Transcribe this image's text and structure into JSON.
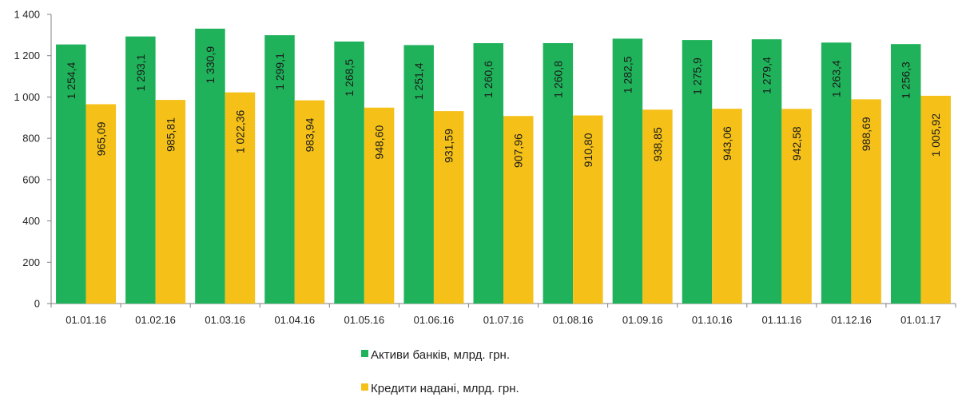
{
  "chart_data": {
    "type": "bar",
    "categories": [
      "01.01.16",
      "01.02.16",
      "01.03.16",
      "01.04.16",
      "01.05.16",
      "01.06.16",
      "01.07.16",
      "01.08.16",
      "01.09.16",
      "01.10.16",
      "01.11.16",
      "01.12.16",
      "01.01.17"
    ],
    "series": [
      {
        "name": "Активи банків, млрд. грн.",
        "color": "#1fb25a",
        "values": [
          1254.4,
          1293.1,
          1330.9,
          1299.1,
          1268.5,
          1251.4,
          1260.6,
          1260.8,
          1282.5,
          1275.9,
          1279.4,
          1263.4,
          1256.3
        ],
        "labels": [
          "1 254,4",
          "1 293,1",
          "1 330,9",
          "1 299,1",
          "1 268,5",
          "1 251,4",
          "1 260,6",
          "1 260,8",
          "1 282,5",
          "1 275,9",
          "1 279,4",
          "1 263,4",
          "1 256,3"
        ]
      },
      {
        "name": "Кредити надані, млрд. грн.",
        "color": "#f5c018",
        "values": [
          965.09,
          985.81,
          1022.36,
          983.94,
          948.6,
          931.59,
          907.96,
          910.8,
          938.85,
          943.06,
          942.58,
          988.69,
          1005.92
        ],
        "labels": [
          "965,09",
          "985,81",
          "1 022,36",
          "983,94",
          "948,60",
          "931,59",
          "907,96",
          "910,80",
          "938,85",
          "943,06",
          "942,58",
          "988,69",
          "1 005,92"
        ]
      }
    ],
    "ylim": [
      0,
      1400
    ],
    "yticks": [
      0,
      200,
      400,
      600,
      800,
      1000,
      1200,
      1400
    ],
    "ytick_labels": [
      "0",
      "200",
      "400",
      "600",
      "800",
      "1 000",
      "1 200",
      "1 400"
    ],
    "grid": false,
    "legend": "bottom-center",
    "title": "",
    "xlabel": "",
    "ylabel": ""
  }
}
